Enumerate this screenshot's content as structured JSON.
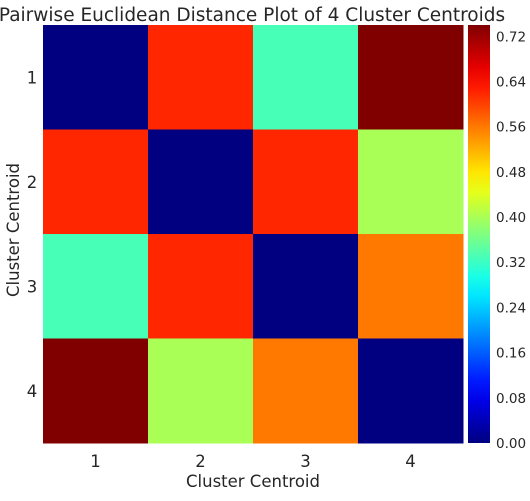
{
  "chart_data": {
    "type": "heatmap",
    "title": "Pairwise Euclidean Distance Plot of 4 Cluster Centroids",
    "xlabel": "Cluster Centroid",
    "ylabel": "Cluster Centroid",
    "x_categories": [
      "1",
      "2",
      "3",
      "4"
    ],
    "y_categories": [
      "1",
      "2",
      "3",
      "4"
    ],
    "values": [
      [
        0.0,
        0.62,
        0.33,
        0.74
      ],
      [
        0.62,
        0.0,
        0.62,
        0.4
      ],
      [
        0.33,
        0.62,
        0.0,
        0.56
      ],
      [
        0.74,
        0.4,
        0.56,
        0.0
      ]
    ],
    "colormap": "jet",
    "colorbar": {
      "vmin": 0.0,
      "vmax": 0.74,
      "ticks": [
        "0.00",
        "0.08",
        "0.16",
        "0.24",
        "0.32",
        "0.40",
        "0.48",
        "0.56",
        "0.64",
        "0.72"
      ],
      "position": "right"
    },
    "grid": false
  }
}
